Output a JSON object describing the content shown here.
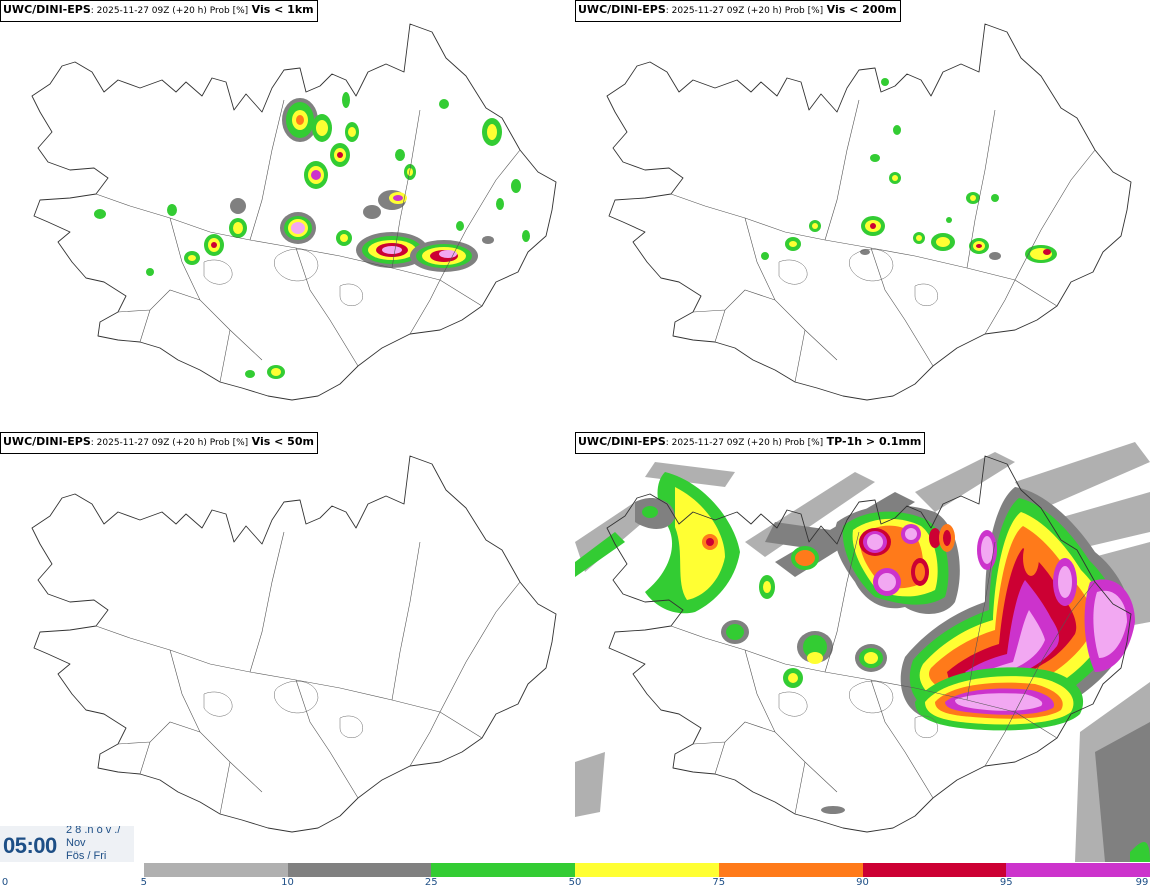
{
  "panels": [
    {
      "source": "UWC/DINI-EPS",
      "meta": ": 2025-11-27 09Z (+20 h) Prob [%]",
      "variable": "Vis < 1km"
    },
    {
      "source": "UWC/DINI-EPS",
      "meta": ": 2025-11-27 09Z (+20 h) Prob [%]",
      "variable": "Vis < 200m"
    },
    {
      "source": "UWC/DINI-EPS",
      "meta": ": 2025-11-27 09Z (+20 h) Prob [%]",
      "variable": "Vis < 50m"
    },
    {
      "source": "UWC/DINI-EPS",
      "meta": ": 2025-11-27 09Z (+20 h) Prob [%]",
      "variable": "TP-1h > 0.1mm"
    }
  ],
  "time_label": {
    "time": "05:00",
    "date_line1": "2 8 .n ó v ./",
    "date_line2": "Nov",
    "date_line3": "Fös / Fri"
  },
  "legend": {
    "ticks": [
      "0",
      "5",
      "10",
      "25",
      "50",
      "75",
      "90",
      "95",
      "99"
    ],
    "colors": [
      "#ffffff",
      "#b0b0b0",
      "#808080",
      "#33cc33",
      "#ffff33",
      "#ff7a1a",
      "#cc0033",
      "#cc33cc",
      "#f2a8f2"
    ]
  },
  "colors": {
    "p5": "#b0b0b0",
    "p10": "#808080",
    "p25": "#33cc33",
    "p50": "#ffff33",
    "p75": "#ff7a1a",
    "p90": "#cc0033",
    "p95": "#cc33cc",
    "p99": "#f2a8f2"
  }
}
